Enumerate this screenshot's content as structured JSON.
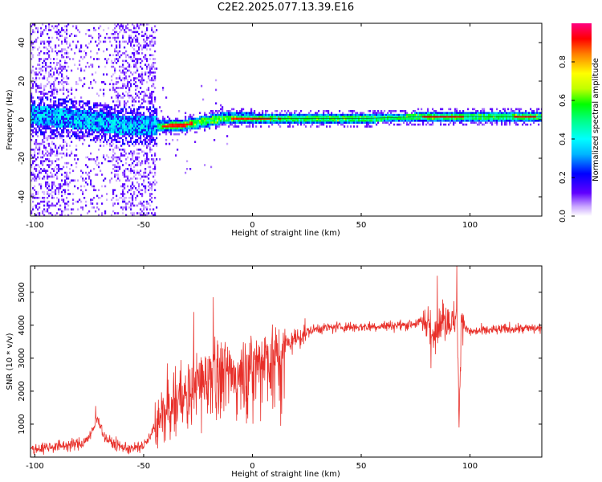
{
  "title": "C2E2.2025.077.13.39.E16",
  "chart_data": [
    {
      "type": "heatmap",
      "xlabel": "Height of straight line (km)",
      "ylabel": "Frequency (Hz)",
      "xlim": [
        -102,
        133
      ],
      "ylim": [
        -50,
        50
      ],
      "xticks": [
        -100,
        -50,
        0,
        50,
        100
      ],
      "yticks": [
        -40,
        -20,
        0,
        20,
        40
      ],
      "ridge": {
        "description_points": [
          {
            "x": -100,
            "y": 3
          },
          {
            "x": -75,
            "y": 0
          },
          {
            "x": -55,
            "y": -3
          },
          {
            "x": -40,
            "y": -3
          },
          {
            "x": -30,
            "y": -2
          },
          {
            "x": -15,
            "y": 1
          },
          {
            "x": 0,
            "y": 1
          },
          {
            "x": 50,
            "y": 1
          },
          {
            "x": 80,
            "y": 2
          },
          {
            "x": 95,
            "y": 2
          },
          {
            "x": 133,
            "y": 2
          }
        ],
        "peak_regions_x": [
          [
            -42,
            -28
          ],
          [
            -10,
            8
          ],
          [
            11,
            13
          ],
          [
            78,
            97
          ],
          [
            120,
            130
          ]
        ]
      },
      "colorbar": {
        "label": "Normalized spectral amplitude",
        "range": [
          0,
          1
        ],
        "ticks": [
          "0.0",
          "0.2",
          "0.4",
          "0.6",
          "0.8"
        ],
        "ticks_values": [
          0.0,
          0.2,
          0.4,
          0.6,
          0.8
        ],
        "colors": [
          "#ffffff",
          "#c9a6ff",
          "#6000ff",
          "#0000ff",
          "#00b4ff",
          "#00ffff",
          "#00ff80",
          "#00ff00",
          "#c0ff00",
          "#ffff00",
          "#ff8000",
          "#ff0000",
          "#ff0080"
        ]
      }
    },
    {
      "type": "line",
      "xlabel": "Height of straight line (km)",
      "ylabel": "SNR (10 * v/v)",
      "xlim": [
        -102,
        133
      ],
      "ylim": [
        0,
        5800
      ],
      "xticks": [
        -100,
        -50,
        0,
        50,
        100
      ],
      "yticks": [
        1000,
        2000,
        3000,
        4000,
        5000
      ],
      "color": "#e8302a",
      "series": [
        {
          "x": [
            -102,
            -95,
            -85,
            -78,
            -74,
            -71,
            -68,
            -65,
            -60,
            -55,
            -50,
            -47,
            -44,
            -40,
            -35,
            -30,
            -25,
            -20,
            -18,
            -15,
            -10,
            -5,
            0,
            5,
            10,
            12,
            15,
            20,
            25,
            30,
            40,
            50,
            60,
            70,
            78,
            80,
            83,
            85,
            88,
            92,
            94,
            95,
            96,
            98,
            100,
            110,
            120,
            133
          ],
          "y": [
            220,
            300,
            360,
            420,
            700,
            1200,
            600,
            450,
            300,
            250,
            350,
            600,
            1100,
            1500,
            1800,
            2100,
            2300,
            2600,
            3000,
            2700,
            2600,
            2800,
            2900,
            3100,
            3200,
            3100,
            3400,
            3600,
            3800,
            3900,
            3950,
            3950,
            3980,
            4000,
            4100,
            4200,
            3600,
            4100,
            4150,
            4100,
            4300,
            1000,
            4300,
            3900,
            3800,
            3850,
            3900,
            3900
          ]
        }
      ],
      "spikes": [
        {
          "x": -72,
          "y": 1550
        },
        {
          "x": -18,
          "y": 4850
        },
        {
          "x": -27,
          "y": 4400
        },
        {
          "x": 13,
          "y": 950
        },
        {
          "x": 85,
          "y": 5500
        },
        {
          "x": 82,
          "y": 2700
        },
        {
          "x": 94,
          "y": 5800
        },
        {
          "x": 95,
          "y": 900
        }
      ]
    }
  ]
}
